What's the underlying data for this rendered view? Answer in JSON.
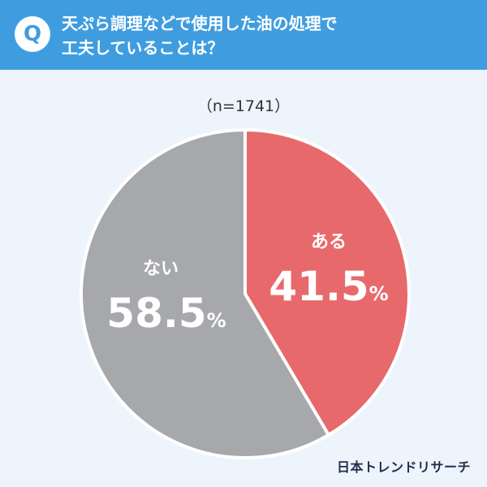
{
  "header": {
    "badge": "Q",
    "question_line1": "天ぷら調理などで使用した油の処理で",
    "question_line2": "工夫していることは？"
  },
  "sample_size": "（n=1741）",
  "chart_data": {
    "type": "pie",
    "title": "",
    "categories": [
      "ある",
      "ない"
    ],
    "values": [
      41.5,
      58.5
    ],
    "unit": "%",
    "colors": [
      "#e8696b",
      "#a6a8ac"
    ],
    "legend": "none"
  },
  "footer": {
    "brand": "日本トレンドリサーチ"
  },
  "colors": {
    "header": "#3f9ddf",
    "background": "#eef4fb"
  }
}
